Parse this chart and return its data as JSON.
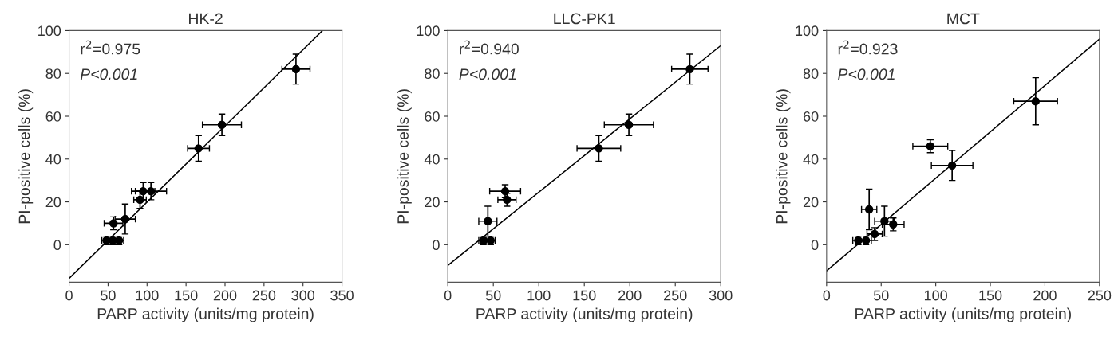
{
  "chart_data": [
    {
      "type": "scatter",
      "title": "HK-2",
      "xlabel": "PARP activity (units/mg protein)",
      "ylabel": "PI-positive cells (%)",
      "xlim": [
        0,
        350
      ],
      "ylim": [
        -17.5,
        100
      ],
      "xticks": [
        0,
        50,
        100,
        150,
        200,
        250,
        300,
        350
      ],
      "yticks": [
        0,
        20,
        40,
        60,
        80,
        100
      ],
      "grid": false,
      "annotations": [
        "r$^{2}$=0.975",
        "P<0.001"
      ],
      "series": [
        {
          "marker": "circle",
          "color": "#000000",
          "x": [
            291,
            196,
            166,
            105,
            95,
            91,
            72,
            57,
            48,
            56,
            64
          ],
          "values": [
            82,
            56,
            45,
            25,
            25,
            21,
            12,
            10,
            2,
            2,
            2
          ],
          "errors": [
            7,
            5,
            6,
            4,
            4,
            4,
            7,
            3,
            2,
            2,
            2
          ],
          "xerrors": [
            18,
            25,
            14,
            20,
            15,
            8,
            13,
            12,
            6,
            6,
            6
          ]
        },
        {
          "type": "line",
          "marker": "none",
          "color": "#000000",
          "x": [
            0,
            325
          ],
          "values": [
            -15.7,
            100
          ]
        }
      ]
    },
    {
      "type": "scatter",
      "title": "LLC-PK1",
      "xlabel": "PARP activity (units/mg protein)",
      "ylabel": "PI-positive cells (%)",
      "xlim": [
        0,
        300
      ],
      "ylim": [
        -17.5,
        100
      ],
      "xticks": [
        0,
        50,
        100,
        150,
        200,
        250,
        300
      ],
      "yticks": [
        0,
        20,
        40,
        60,
        80,
        100
      ],
      "grid": false,
      "annotations": [
        "r$^{2}$=0.940",
        "P<0.001"
      ],
      "series": [
        {
          "marker": "circle",
          "color": "#000000",
          "x": [
            266,
            199,
            166,
            63,
            65,
            44,
            39,
            47
          ],
          "values": [
            82,
            56,
            45,
            25,
            21,
            11,
            2,
            2
          ],
          "errors": [
            7,
            5,
            6,
            3,
            3,
            7,
            2,
            2
          ],
          "xerrors": [
            20,
            27,
            24,
            17,
            10,
            10,
            5,
            5
          ]
        },
        {
          "type": "line",
          "marker": "none",
          "color": "#000000",
          "x": [
            0,
            300
          ],
          "values": [
            -9.7,
            93
          ]
        }
      ]
    },
    {
      "type": "scatter",
      "title": "MCT",
      "xlabel": "PARP activity (units/mg protein)",
      "ylabel": "PI-positive cells (%)",
      "xlim": [
        0,
        250
      ],
      "ylim": [
        -17.5,
        100
      ],
      "xticks": [
        0,
        50,
        100,
        150,
        200,
        250
      ],
      "yticks": [
        0,
        20,
        40,
        60,
        80,
        100
      ],
      "grid": false,
      "annotations": [
        "r$^{2}$=0.923",
        "P<0.001"
      ],
      "series": [
        {
          "marker": "circle",
          "color": "#000000",
          "x": [
            191.5,
            95,
            115,
            39,
            53,
            61,
            44,
            29,
            36
          ],
          "values": [
            67,
            46,
            37,
            16.5,
            11,
            9.5,
            5,
            2,
            2
          ],
          "errors": [
            11,
            3,
            7,
            9.5,
            7,
            3,
            3,
            2,
            2
          ],
          "xerrors": [
            20,
            16,
            19,
            7,
            9,
            10,
            7,
            5,
            5
          ]
        },
        {
          "type": "line",
          "marker": "none",
          "color": "#000000",
          "x": [
            0,
            250
          ],
          "values": [
            -12.2,
            96
          ]
        }
      ]
    }
  ]
}
